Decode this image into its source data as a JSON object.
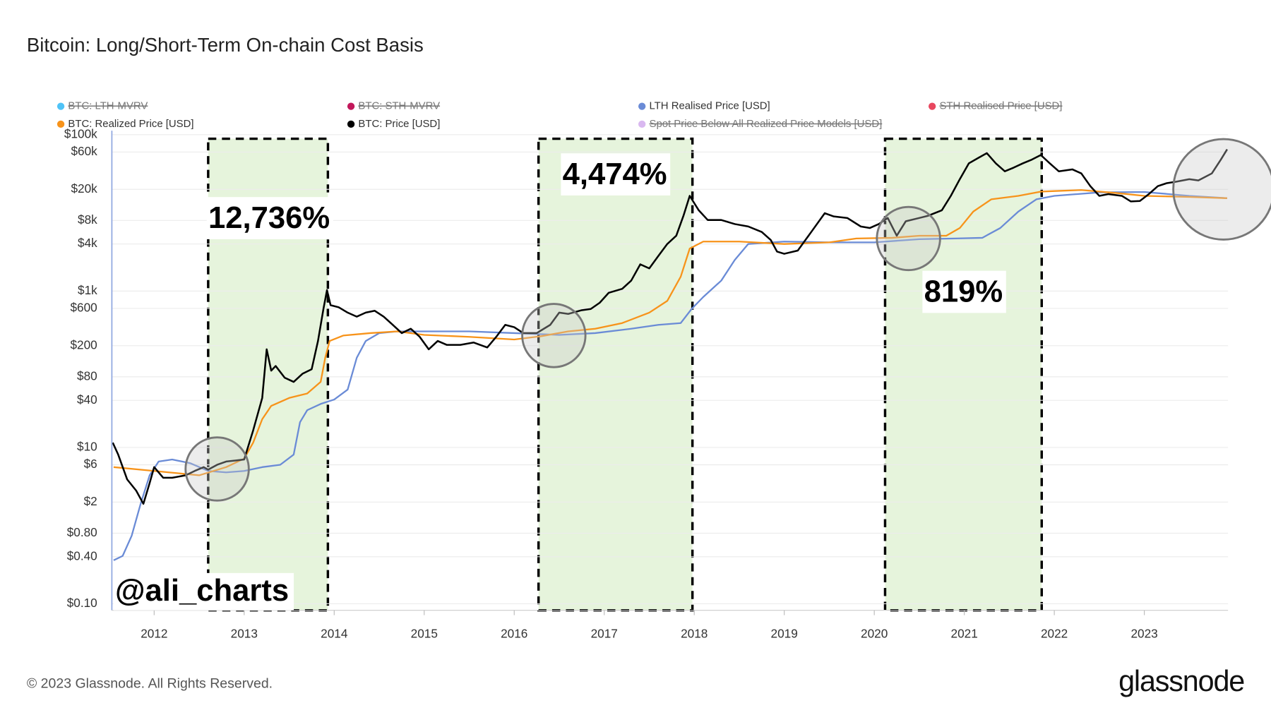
{
  "chart_data": {
    "type": "line",
    "title": "Bitcoin: Long/Short-Term On-chain Cost Basis",
    "footer": "© 2023 Glassnode. All Rights Reserved.",
    "brand": "glassnode",
    "watermark": "@ali_charts",
    "log_y": true,
    "grid": true,
    "xlim": [
      2011.53,
      2023.93
    ],
    "xticks": [
      2012,
      2013,
      2014,
      2015,
      2016,
      2017,
      2018,
      2019,
      2020,
      2021,
      2022,
      2023
    ],
    "ylim": [
      0.1,
      100000
    ],
    "yticks": [
      {
        "value": 0.1,
        "label": "$0.10"
      },
      {
        "value": 0.4,
        "label": "$0.40"
      },
      {
        "value": 0.8,
        "label": "$0.80"
      },
      {
        "value": 2,
        "label": "$2"
      },
      {
        "value": 6,
        "label": "$6"
      },
      {
        "value": 10,
        "label": "$10"
      },
      {
        "value": 40,
        "label": "$40"
      },
      {
        "value": 80,
        "label": "$80"
      },
      {
        "value": 200,
        "label": "$200"
      },
      {
        "value": 600,
        "label": "$600"
      },
      {
        "value": 1000,
        "label": "$1k"
      },
      {
        "value": 4000,
        "label": "$4k"
      },
      {
        "value": 8000,
        "label": "$8k"
      },
      {
        "value": 20000,
        "label": "$20k"
      },
      {
        "value": 60000,
        "label": "$60k"
      },
      {
        "value": 100000,
        "label": "$100k"
      }
    ],
    "regions": [
      {
        "x0": 2012.6,
        "x1": 2013.93,
        "label": "12,736%"
      },
      {
        "x0": 2016.27,
        "x1": 2017.98,
        "label": "4,474%"
      },
      {
        "x0": 2020.12,
        "x1": 2021.86,
        "label": "819%"
      }
    ],
    "highlights": [
      {
        "x": 2012.7,
        "y": 5.3
      },
      {
        "x": 2016.44,
        "y": 270
      },
      {
        "x": 2020.38,
        "y": 4700
      },
      {
        "x": 2023.88,
        "y": 20000
      }
    ],
    "series": [
      {
        "name": "BTC: LTH-MVRV",
        "color": "#4fc3f7",
        "visible": false
      },
      {
        "name": "BTC: STH-MVRV",
        "color": "#c2185b",
        "visible": false
      },
      {
        "name": "LTH Realised Price [USD]",
        "color": "#6a8bd6",
        "visible": true,
        "x": [
          2011.55,
          2011.65,
          2011.75,
          2011.85,
          2011.95,
          2012.05,
          2012.2,
          2012.4,
          2012.6,
          2012.8,
          2013.0,
          2013.2,
          2013.4,
          2013.55,
          2013.62,
          2013.7,
          2013.85,
          2014.0,
          2014.15,
          2014.25,
          2014.35,
          2014.5,
          2014.7,
          2015.0,
          2015.5,
          2016.0,
          2016.5,
          2016.9,
          2017.3,
          2017.6,
          2017.85,
          2017.97,
          2018.1,
          2018.3,
          2018.45,
          2018.6,
          2019.0,
          2019.5,
          2020.0,
          2020.5,
          2020.9,
          2021.2,
          2021.4,
          2021.6,
          2021.8,
          2022.0,
          2022.5,
          2023.0,
          2023.5,
          2023.92
        ],
        "values": [
          0.36,
          0.41,
          0.74,
          1.9,
          4.4,
          6.6,
          7,
          6.3,
          5,
          4.8,
          5,
          5.6,
          6,
          8.1,
          21,
          30,
          36,
          41,
          55,
          140,
          230,
          290,
          305,
          305,
          305,
          290,
          275,
          290,
          330,
          370,
          390,
          590,
          840,
          1360,
          2500,
          4000,
          4300,
          4200,
          4200,
          4600,
          4700,
          4800,
          6400,
          10400,
          14900,
          16500,
          18300,
          18500,
          16500,
          15400
        ]
      },
      {
        "name": "STH Realised Price [USD]",
        "color": "#e8475f",
        "visible": false
      },
      {
        "name": "BTC: Realized Price [USD]",
        "color": "#f7931a",
        "visible": true,
        "x": [
          2011.55,
          2012.0,
          2012.5,
          2012.8,
          2013.0,
          2013.1,
          2013.2,
          2013.3,
          2013.5,
          2013.7,
          2013.85,
          2013.9,
          2013.95,
          2014.1,
          2014.4,
          2014.7,
          2015.0,
          2015.5,
          2016.0,
          2016.3,
          2016.6,
          2016.9,
          2017.2,
          2017.5,
          2017.7,
          2017.85,
          2017.95,
          2018.1,
          2018.5,
          2019.0,
          2019.5,
          2019.8,
          2020.2,
          2020.5,
          2020.8,
          2020.95,
          2021.1,
          2021.3,
          2021.6,
          2021.85,
          2022.0,
          2022.3,
          2022.7,
          2023.0,
          2023.5,
          2023.92
        ],
        "values": [
          5.6,
          5,
          4.4,
          5.6,
          7.2,
          11.5,
          23,
          34,
          43,
          49,
          69,
          140,
          230,
          270,
          290,
          305,
          275,
          260,
          240,
          265,
          305,
          330,
          390,
          530,
          750,
          1530,
          3500,
          4300,
          4300,
          4000,
          4200,
          4700,
          4800,
          5100,
          5100,
          6400,
          10400,
          14900,
          16500,
          18700,
          19000,
          19600,
          17900,
          16500,
          16000,
          15400
        ]
      },
      {
        "name": "BTC: Price [USD]",
        "color": "#000000",
        "visible": true,
        "x": [
          2011.54,
          2011.6,
          2011.7,
          2011.8,
          2011.88,
          2011.95,
          2012.0,
          2012.1,
          2012.2,
          2012.35,
          2012.45,
          2012.55,
          2012.6,
          2012.7,
          2012.8,
          2012.9,
          2013.0,
          2013.1,
          2013.2,
          2013.25,
          2013.3,
          2013.35,
          2013.45,
          2013.55,
          2013.65,
          2013.75,
          2013.82,
          2013.88,
          2013.92,
          2013.96,
          2014.05,
          2014.15,
          2014.25,
          2014.35,
          2014.45,
          2014.55,
          2014.65,
          2014.75,
          2014.85,
          2014.95,
          2015.05,
          2015.15,
          2015.25,
          2015.4,
          2015.55,
          2015.7,
          2015.8,
          2015.9,
          2016.0,
          2016.1,
          2016.25,
          2016.4,
          2016.5,
          2016.6,
          2016.75,
          2016.85,
          2016.95,
          2017.05,
          2017.2,
          2017.3,
          2017.4,
          2017.5,
          2017.6,
          2017.7,
          2017.8,
          2017.88,
          2017.95,
          2018.05,
          2018.15,
          2018.3,
          2018.45,
          2018.6,
          2018.75,
          2018.85,
          2018.92,
          2019.0,
          2019.15,
          2019.3,
          2019.45,
          2019.55,
          2019.7,
          2019.85,
          2019.95,
          2020.05,
          2020.15,
          2020.25,
          2020.35,
          2020.5,
          2020.6,
          2020.75,
          2020.85,
          2020.95,
          2021.05,
          2021.15,
          2021.25,
          2021.35,
          2021.45,
          2021.55,
          2021.65,
          2021.75,
          2021.85,
          2021.95,
          2022.05,
          2022.2,
          2022.3,
          2022.4,
          2022.5,
          2022.6,
          2022.75,
          2022.85,
          2022.95,
          2023.05,
          2023.15,
          2023.25,
          2023.35,
          2023.5,
          2023.6,
          2023.75,
          2023.85,
          2023.92
        ],
        "values": [
          11.5,
          8.1,
          3.9,
          2.8,
          1.9,
          3.5,
          5.6,
          4.1,
          4.1,
          4.4,
          5,
          5.6,
          5.2,
          6,
          6.6,
          6.8,
          7,
          16.5,
          43,
          180,
          96,
          110,
          78,
          69,
          88,
          100,
          230,
          590,
          1030,
          660,
          620,
          530,
          470,
          530,
          560,
          470,
          370,
          290,
          330,
          260,
          180,
          230,
          205,
          205,
          220,
          190,
          260,
          370,
          345,
          290,
          290,
          370,
          530,
          510,
          570,
          590,
          710,
          950,
          1070,
          1360,
          2200,
          1950,
          2800,
          4000,
          5100,
          9200,
          16500,
          10800,
          8100,
          8100,
          7200,
          6700,
          5700,
          4500,
          3200,
          3000,
          3300,
          5700,
          9900,
          9000,
          8600,
          6700,
          6400,
          7200,
          8600,
          5100,
          7800,
          8600,
          9200,
          10800,
          16500,
          27000,
          43000,
          50000,
          58000,
          43000,
          34000,
          38000,
          43000,
          48000,
          55000,
          43000,
          34000,
          36000,
          32000,
          22000,
          16500,
          17400,
          16500,
          14000,
          14200,
          17400,
          22000,
          24000,
          25000,
          27000,
          26000,
          32000,
          48000,
          65000
        ]
      },
      {
        "name": "Spot Price Below All Realized Price Models [USD]",
        "color": "#d9b8f0",
        "visible": false
      }
    ]
  }
}
